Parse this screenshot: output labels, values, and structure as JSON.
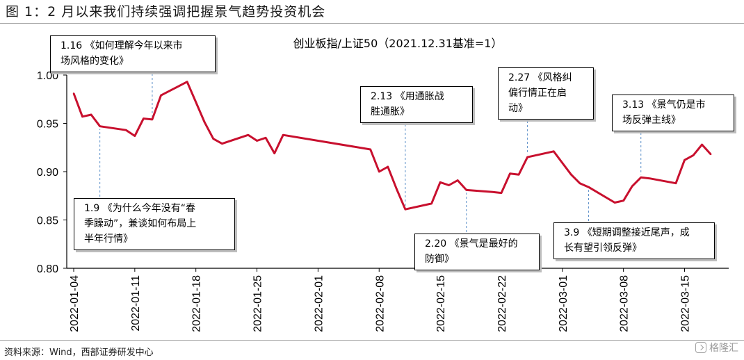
{
  "figure_title": "图 1：2 月以来我们持续强调把握景气趋势投资机会",
  "source": "资料来源：Wind，西部证券研发中心",
  "watermark": "格隆汇",
  "colors": {
    "line": "#c8102e",
    "axis": "#000000",
    "annotation_border": "#000000"
  },
  "chart_data": {
    "type": "line",
    "title": "创业板指/上证50（2021.12.31基准=1）",
    "xlabel": "",
    "ylabel": "",
    "ylim": [
      0.8,
      1.0
    ],
    "yticks": [
      "0.80",
      "0.85",
      "0.90",
      "0.95",
      "1.00"
    ],
    "xticks": [
      "2022-01-04",
      "2022-01-11",
      "2022-01-18",
      "2022-01-25",
      "2022-02-01",
      "2022-02-08",
      "2022-02-15",
      "2022-02-22",
      "2022-03-01",
      "2022-03-08",
      "2022-03-15"
    ],
    "grid": false,
    "legend": "none",
    "series": [
      {
        "x": [
          "2022-01-04",
          "2022-01-05",
          "2022-01-06",
          "2022-01-07",
          "2022-01-10",
          "2022-01-11",
          "2022-01-12",
          "2022-01-13",
          "2022-01-14",
          "2022-01-17",
          "2022-01-18",
          "2022-01-19",
          "2022-01-20",
          "2022-01-21",
          "2022-01-24",
          "2022-01-25",
          "2022-01-26",
          "2022-01-27",
          "2022-01-28",
          "2022-02-07",
          "2022-02-08",
          "2022-02-09",
          "2022-02-10",
          "2022-02-11",
          "2022-02-14",
          "2022-02-15",
          "2022-02-16",
          "2022-02-17",
          "2022-02-18",
          "2022-02-21",
          "2022-02-22",
          "2022-02-23",
          "2022-02-24",
          "2022-02-25",
          "2022-02-28",
          "2022-03-01",
          "2022-03-02",
          "2022-03-03",
          "2022-03-04",
          "2022-03-07",
          "2022-03-08",
          "2022-03-09",
          "2022-03-10",
          "2022-03-11",
          "2022-03-14",
          "2022-03-15",
          "2022-03-16",
          "2022-03-17",
          "2022-03-18"
        ],
        "values": [
          0.981,
          0.957,
          0.959,
          0.947,
          0.943,
          0.937,
          0.955,
          0.954,
          0.979,
          0.993,
          0.972,
          0.951,
          0.934,
          0.929,
          0.938,
          0.932,
          0.935,
          0.919,
          0.938,
          0.923,
          0.9,
          0.905,
          0.882,
          0.861,
          0.867,
          0.889,
          0.886,
          0.891,
          0.881,
          0.879,
          0.878,
          0.898,
          0.897,
          0.915,
          0.921,
          0.909,
          0.897,
          0.888,
          0.884,
          0.868,
          0.87,
          0.885,
          0.894,
          0.893,
          0.888,
          0.912,
          0.917,
          0.928,
          0.918
        ]
      }
    ],
    "annotations": [
      {
        "date": "2022-01-13",
        "text": "1.16 《如何理解今年以来市\n场风格的变化》"
      },
      {
        "date": "2022-01-07",
        "text": "1.9 《为什么今年没有“春\n季躁动”，兼谈如何布局上\n半年行情》"
      },
      {
        "date": "2022-02-11",
        "text": "2.13 《用通胀战\n胜通胀》"
      },
      {
        "date": "2022-02-18",
        "text": "2.20 《景气是最好的\n防御》"
      },
      {
        "date": "2022-02-25",
        "text": "2.27 《风格纠\n偏行情正在启\n动》"
      },
      {
        "date": "2022-03-04",
        "text": "3.9 《短期调整接近尾声，成\n长有望引领反弹》"
      },
      {
        "date": "2022-03-10",
        "text": "3.13 《景气仍是市\n场反弹主线》"
      }
    ]
  }
}
